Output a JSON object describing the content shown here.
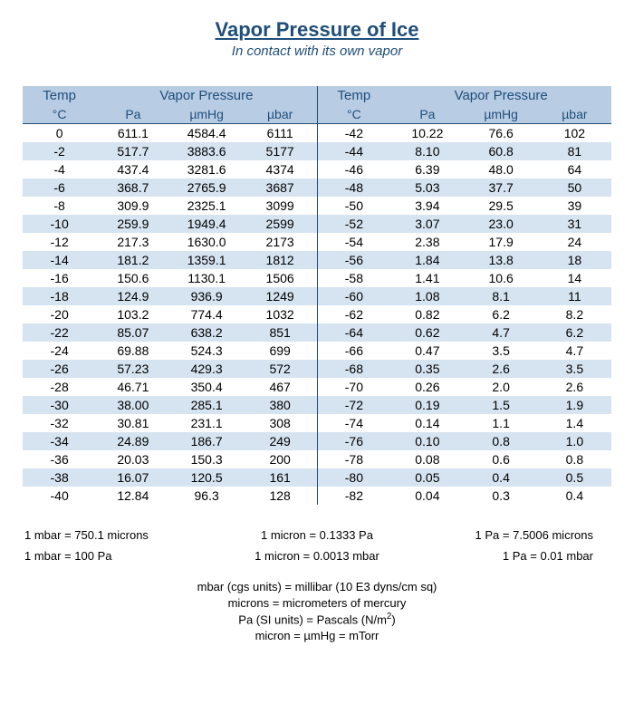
{
  "title": "Vapor Pressure of Ice",
  "subtitle": "In contact with its own vapor",
  "colors": {
    "header_bg": "#b8cce4",
    "stripe_bg": "#d6e3f0",
    "text_header": "#1f4e79",
    "border": "#1f4e79",
    "background": "#ffffff"
  },
  "headers": {
    "temp": "Temp",
    "temp_unit": "°C",
    "vp": "Vapor Pressure",
    "pa": "Pa",
    "umhg": "µmHg",
    "ubar": "µbar"
  },
  "left": [
    {
      "t": "0",
      "pa": "611.1",
      "hg": "4584.4",
      "ub": "6111"
    },
    {
      "t": "-2",
      "pa": "517.7",
      "hg": "3883.6",
      "ub": "5177"
    },
    {
      "t": "-4",
      "pa": "437.4",
      "hg": "3281.6",
      "ub": "4374"
    },
    {
      "t": "-6",
      "pa": "368.7",
      "hg": "2765.9",
      "ub": "3687"
    },
    {
      "t": "-8",
      "pa": "309.9",
      "hg": "2325.1",
      "ub": "3099"
    },
    {
      "t": "-10",
      "pa": "259.9",
      "hg": "1949.4",
      "ub": "2599"
    },
    {
      "t": "-12",
      "pa": "217.3",
      "hg": "1630.0",
      "ub": "2173"
    },
    {
      "t": "-14",
      "pa": "181.2",
      "hg": "1359.1",
      "ub": "1812"
    },
    {
      "t": "-16",
      "pa": "150.6",
      "hg": "1130.1",
      "ub": "1506"
    },
    {
      "t": "-18",
      "pa": "124.9",
      "hg": "936.9",
      "ub": "1249"
    },
    {
      "t": "-20",
      "pa": "103.2",
      "hg": "774.4",
      "ub": "1032"
    },
    {
      "t": "-22",
      "pa": "85.07",
      "hg": "638.2",
      "ub": "851"
    },
    {
      "t": "-24",
      "pa": "69.88",
      "hg": "524.3",
      "ub": "699"
    },
    {
      "t": "-26",
      "pa": "57.23",
      "hg": "429.3",
      "ub": "572"
    },
    {
      "t": "-28",
      "pa": "46.71",
      "hg": "350.4",
      "ub": "467"
    },
    {
      "t": "-30",
      "pa": "38.00",
      "hg": "285.1",
      "ub": "380"
    },
    {
      "t": "-32",
      "pa": "30.81",
      "hg": "231.1",
      "ub": "308"
    },
    {
      "t": "-34",
      "pa": "24.89",
      "hg": "186.7",
      "ub": "249"
    },
    {
      "t": "-36",
      "pa": "20.03",
      "hg": "150.3",
      "ub": "200"
    },
    {
      "t": "-38",
      "pa": "16.07",
      "hg": "120.5",
      "ub": "161"
    },
    {
      "t": "-40",
      "pa": "12.84",
      "hg": "96.3",
      "ub": "128"
    }
  ],
  "right": [
    {
      "t": "-42",
      "pa": "10.22",
      "hg": "76.6",
      "ub": "102"
    },
    {
      "t": "-44",
      "pa": "8.10",
      "hg": "60.8",
      "ub": "81"
    },
    {
      "t": "-46",
      "pa": "6.39",
      "hg": "48.0",
      "ub": "64"
    },
    {
      "t": "-48",
      "pa": "5.03",
      "hg": "37.7",
      "ub": "50"
    },
    {
      "t": "-50",
      "pa": "3.94",
      "hg": "29.5",
      "ub": "39"
    },
    {
      "t": "-52",
      "pa": "3.07",
      "hg": "23.0",
      "ub": "31"
    },
    {
      "t": "-54",
      "pa": "2.38",
      "hg": "17.9",
      "ub": "24"
    },
    {
      "t": "-56",
      "pa": "1.84",
      "hg": "13.8",
      "ub": "18"
    },
    {
      "t": "-58",
      "pa": "1.41",
      "hg": "10.6",
      "ub": "14"
    },
    {
      "t": "-60",
      "pa": "1.08",
      "hg": "8.1",
      "ub": "11"
    },
    {
      "t": "-62",
      "pa": "0.82",
      "hg": "6.2",
      "ub": "8.2"
    },
    {
      "t": "-64",
      "pa": "0.62",
      "hg": "4.7",
      "ub": "6.2"
    },
    {
      "t": "-66",
      "pa": "0.47",
      "hg": "3.5",
      "ub": "4.7"
    },
    {
      "t": "-68",
      "pa": "0.35",
      "hg": "2.6",
      "ub": "3.5"
    },
    {
      "t": "-70",
      "pa": "0.26",
      "hg": "2.0",
      "ub": "2.6"
    },
    {
      "t": "-72",
      "pa": "0.19",
      "hg": "1.5",
      "ub": "1.9"
    },
    {
      "t": "-74",
      "pa": "0.14",
      "hg": "1.1",
      "ub": "1.4"
    },
    {
      "t": "-76",
      "pa": "0.10",
      "hg": "0.8",
      "ub": "1.0"
    },
    {
      "t": "-78",
      "pa": "0.08",
      "hg": "0.6",
      "ub": "0.8"
    },
    {
      "t": "-80",
      "pa": "0.05",
      "hg": "0.4",
      "ub": "0.5"
    },
    {
      "t": "-82",
      "pa": "0.04",
      "hg": "0.3",
      "ub": "0.4"
    }
  ],
  "conversions": [
    [
      "1 mbar = 750.1 microns",
      "1 micron = 0.1333 Pa",
      "1 Pa = 7.5006 microns"
    ],
    [
      "1 mbar = 100 Pa",
      "1 micron = 0.0013 mbar",
      "1 Pa = 0.01 mbar"
    ]
  ],
  "notes": [
    "mbar (cgs units) = millibar (10 E3 dyns/cm sq)",
    "microns = micrometers of mercury",
    "Pa (SI units) = Pascals (N/m²)",
    "micron = µmHg = mTorr"
  ]
}
